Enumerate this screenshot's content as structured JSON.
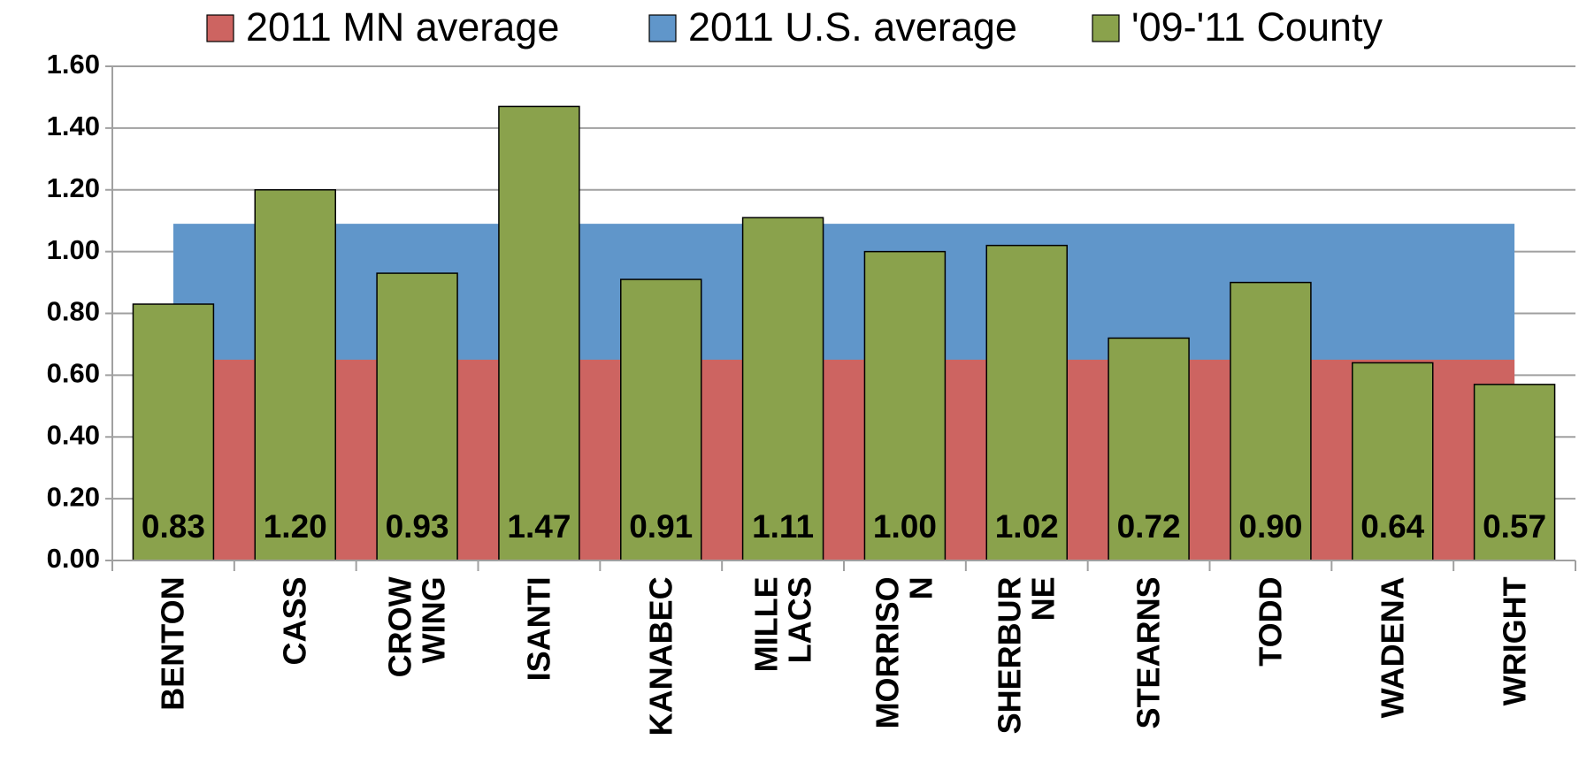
{
  "chart_data": {
    "type": "bar",
    "categories": [
      "BENTON",
      "CASS",
      "CROW WING",
      "ISANTI",
      "KANABEC",
      "MILLE LACS",
      "MORRISON",
      "SHERBURNE",
      "STEARNS",
      "TODD",
      "WADENA",
      "WRIGHT"
    ],
    "series": [
      {
        "name": "2011 MN average",
        "type": "area",
        "color": "#cd6461",
        "values": [
          0.65,
          0.65,
          0.65,
          0.65,
          0.65,
          0.65,
          0.65,
          0.65,
          0.65,
          0.65,
          0.65,
          0.65
        ]
      },
      {
        "name": "2011 U.S. average",
        "type": "area",
        "color": "#6096ca",
        "values": [
          1.09,
          1.09,
          1.09,
          1.09,
          1.09,
          1.09,
          1.09,
          1.09,
          1.09,
          1.09,
          1.09,
          1.09
        ]
      },
      {
        "name": "'09-'11 County",
        "type": "bar",
        "color": "#8aa24c",
        "values": [
          0.83,
          1.2,
          0.93,
          1.47,
          0.91,
          1.11,
          1.0,
          1.02,
          0.72,
          0.9,
          0.64,
          0.57
        ],
        "value_labels": [
          "0.83",
          "1.20",
          "0.93",
          "1.47",
          "0.91",
          "1.11",
          "1.00",
          "1.02",
          "0.72",
          "0.90",
          "0.64",
          "0.57"
        ]
      }
    ],
    "ylim": [
      0,
      1.6
    ],
    "yticks": [
      {
        "value": 0,
        "label": "0.00"
      },
      {
        "value": 0.2,
        "label": "0.20"
      },
      {
        "value": 0.4,
        "label": "0.40"
      },
      {
        "value": 0.6,
        "label": "0.60"
      },
      {
        "value": 0.8,
        "label": "0.80"
      },
      {
        "value": 1.0,
        "label": "1.00"
      },
      {
        "value": 1.2,
        "label": "1.20"
      },
      {
        "value": 1.4,
        "label": "1.40"
      },
      {
        "value": 1.6,
        "label": "1.60"
      }
    ],
    "grid": true,
    "legend": "top"
  }
}
